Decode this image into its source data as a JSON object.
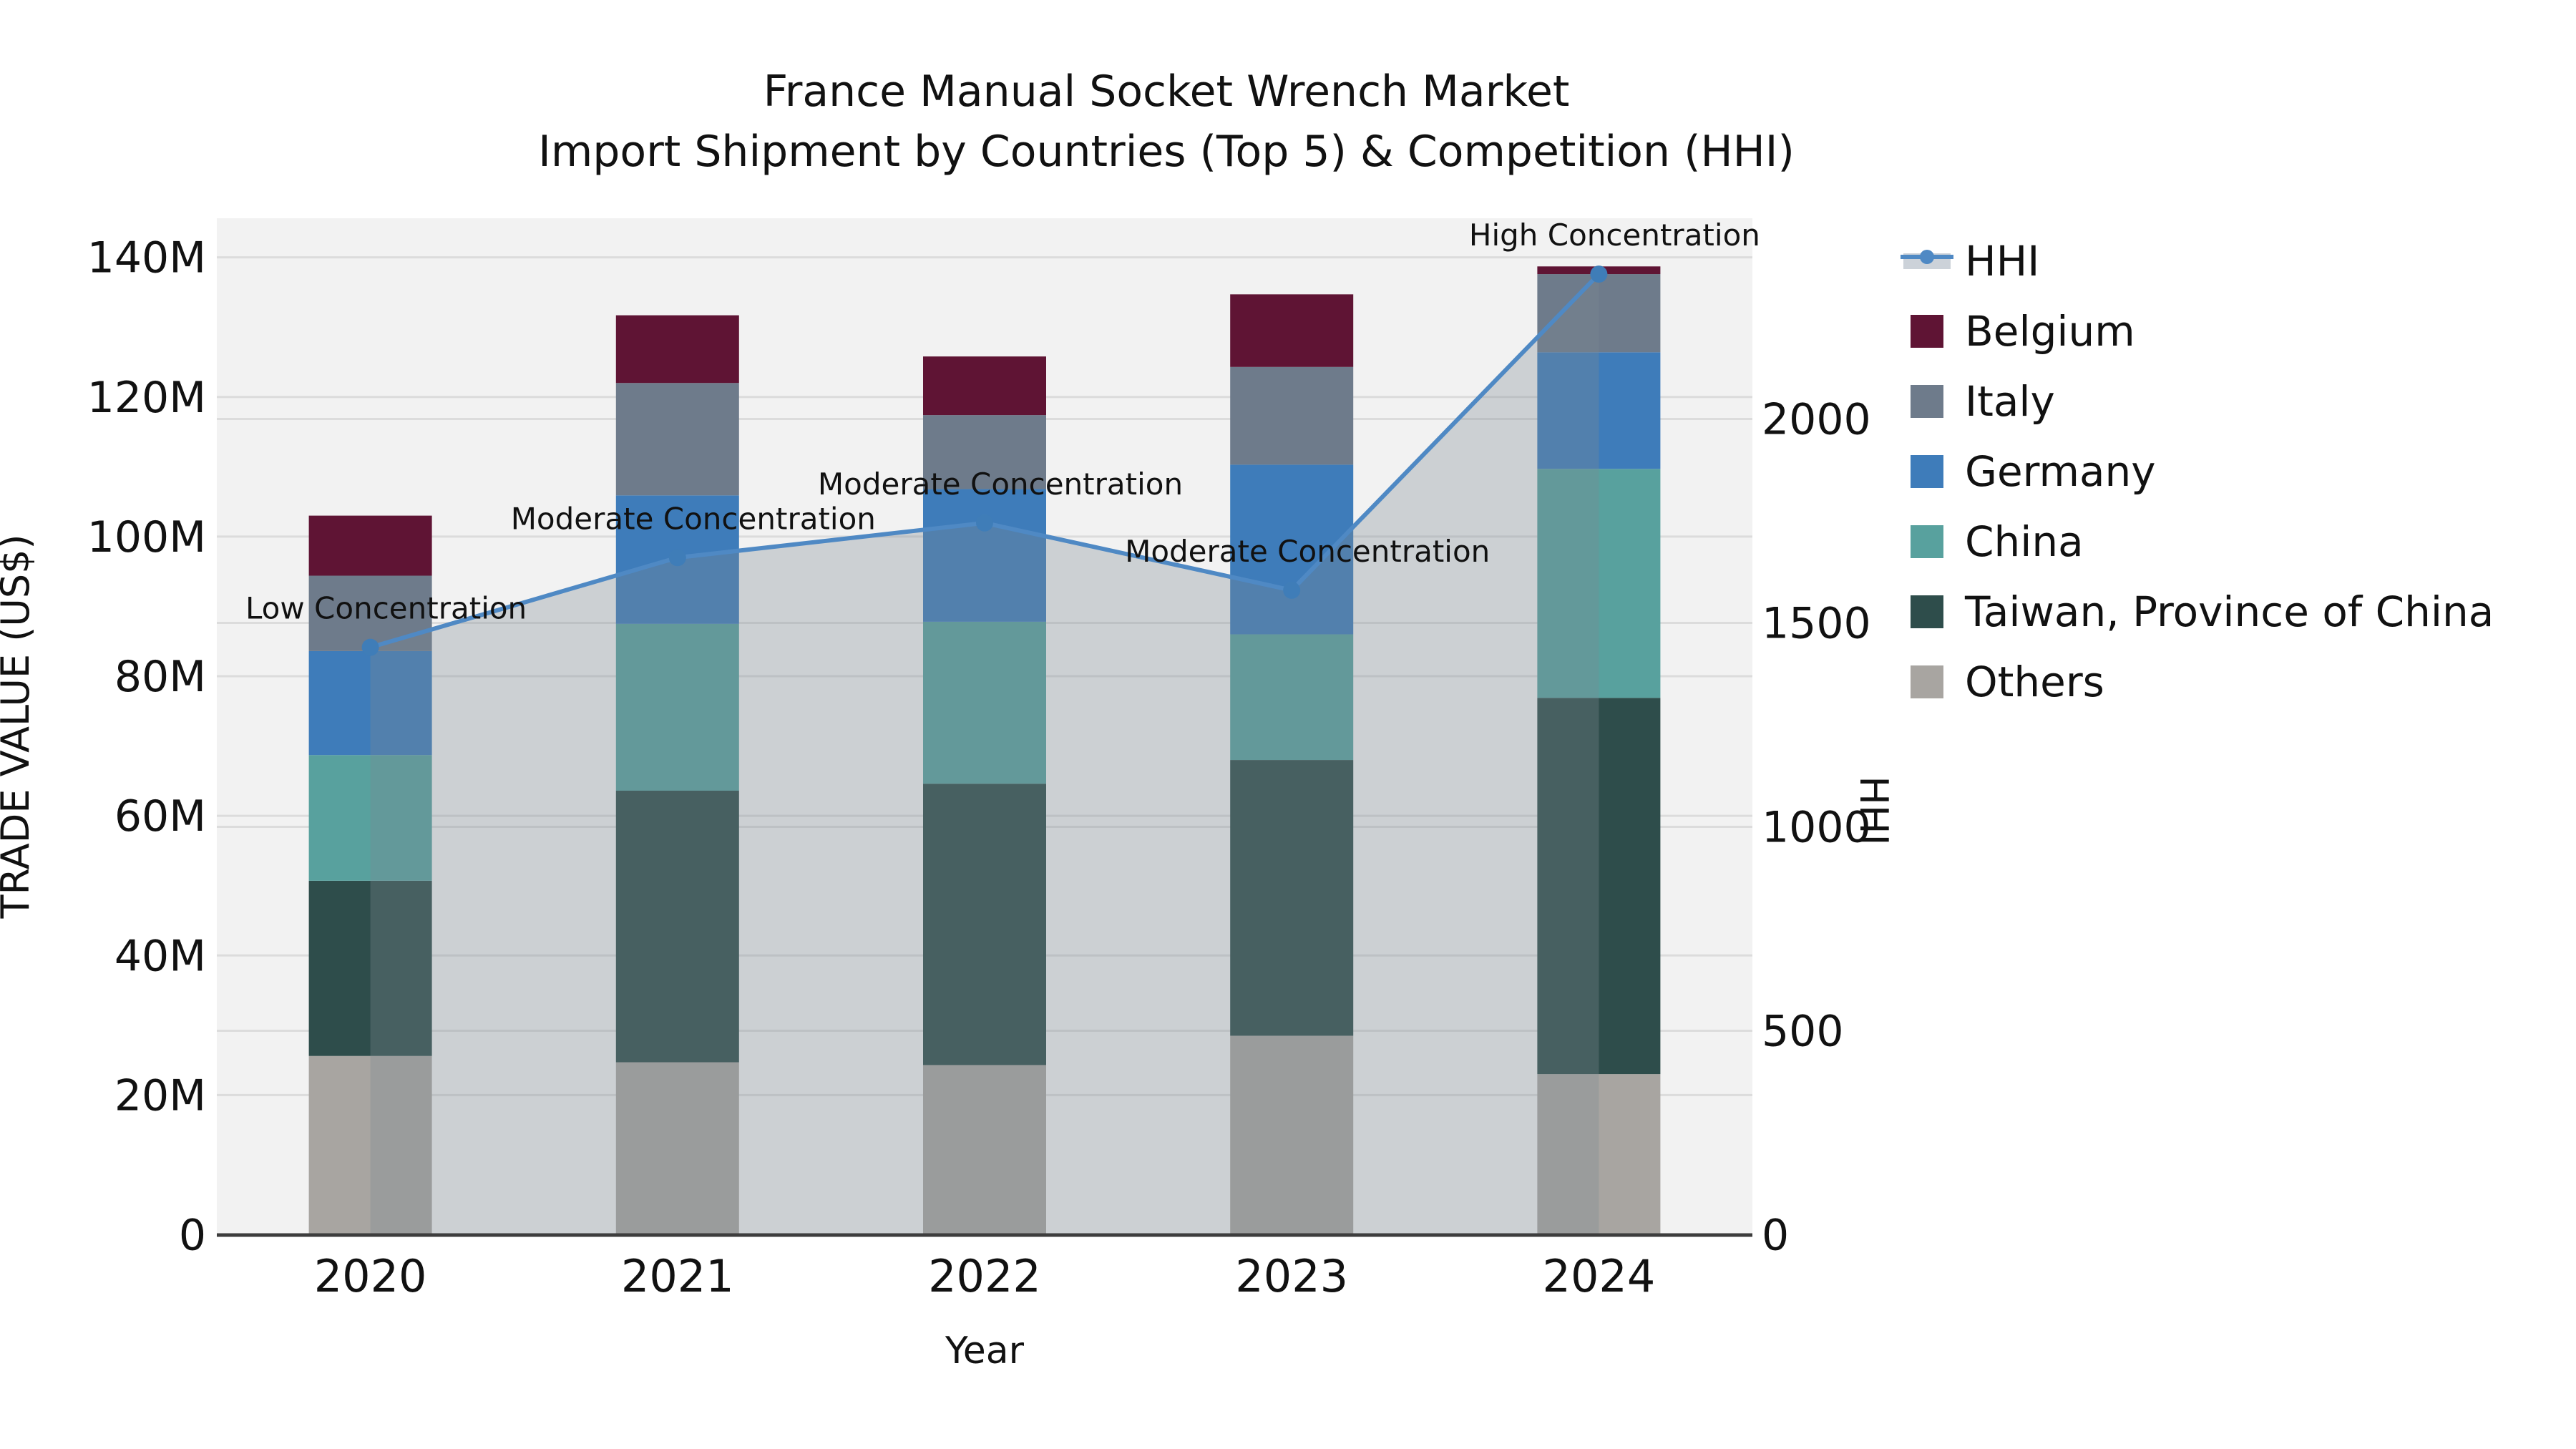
{
  "title": {
    "line1": "France Manual Socket Wrench Market",
    "line2": "Import Shipment by Countries (Top 5) & Competition (HHI)"
  },
  "axes": {
    "left": {
      "title": "TRADE VALUE (US$)",
      "tick_labels": [
        "0",
        "20M",
        "40M",
        "60M",
        "80M",
        "100M",
        "120M",
        "140M"
      ],
      "tick_values": [
        0,
        20,
        40,
        60,
        80,
        100,
        120,
        140
      ],
      "max": 145.6
    },
    "right": {
      "title": "HHI",
      "tick_labels": [
        "0",
        "500",
        "1000",
        "1500",
        "2000"
      ],
      "tick_values": [
        0,
        500,
        1000,
        1500,
        2000
      ],
      "max": 2492
    },
    "x": {
      "title": "Year"
    }
  },
  "legend": [
    {
      "label": "HHI",
      "type": "line",
      "color": "#4f89c4",
      "band": "#ccd2d9"
    },
    {
      "label": "Belgium",
      "type": "patch",
      "color": "#5f1434"
    },
    {
      "label": "Italy",
      "type": "patch",
      "color": "#6e7b8b"
    },
    {
      "label": "Germany",
      "type": "patch",
      "color": "#3e7cba"
    },
    {
      "label": "China",
      "type": "patch",
      "color": "#58a19e"
    },
    {
      "label": "Taiwan, Province of China",
      "type": "patch",
      "color": "#2e4d4b"
    },
    {
      "label": "Others",
      "type": "patch",
      "color": "#a8a5a1"
    }
  ],
  "chart_data": {
    "type": "combo: stacked-bar + line-area",
    "title": "France Manual Socket Wrench Market — Import Shipment by Countries (Top 5) & Competition (HHI)",
    "categories": [
      "2020",
      "2021",
      "2022",
      "2023",
      "2024"
    ],
    "bar_unit": "million US$",
    "series": [
      {
        "name": "Others",
        "color": "#a8a5a1",
        "values": [
          25.6,
          24.7,
          24.3,
          28.5,
          23.0
        ]
      },
      {
        "name": "Taiwan, Province of China",
        "color": "#2e4d4b",
        "values": [
          25.1,
          38.9,
          40.3,
          39.5,
          53.9
        ]
      },
      {
        "name": "China",
        "color": "#58a19e",
        "values": [
          18.0,
          23.9,
          23.2,
          18.0,
          32.8
        ]
      },
      {
        "name": "Germany",
        "color": "#3e7cba",
        "values": [
          14.9,
          18.4,
          19.0,
          24.3,
          16.7
        ]
      },
      {
        "name": "Italy",
        "color": "#6e7b8b",
        "values": [
          10.8,
          16.1,
          10.6,
          14.0,
          11.2
        ]
      },
      {
        "name": "Belgium",
        "color": "#5f1434",
        "values": [
          8.6,
          9.7,
          8.4,
          10.4,
          1.1
        ]
      }
    ],
    "bar_totals": [
      103.0,
      131.7,
      125.8,
      134.7,
      138.7
    ],
    "line_series": {
      "name": "HHI",
      "axis": "right",
      "color": "#4f89c4",
      "marker_color": "#3f7db8",
      "area_fill": "rgba(125,138,145,0.32)",
      "values": [
        1440,
        1660,
        1745,
        1580,
        2355
      ]
    },
    "annotations": [
      "Low Concentration",
      "Moderate Concentration",
      "Moderate Concentration",
      "Moderate Concentration",
      "High Concentration"
    ],
    "ylim_left": [
      0,
      145.6
    ],
    "ylim_right": [
      0,
      2492
    ],
    "grid": true,
    "legend_position": "right"
  },
  "style": {
    "plot_bg": "#f2f2f2",
    "grid_color": "#dcdcdc",
    "axis_line_color": "#3d3d3d",
    "text_color": "#111111"
  }
}
